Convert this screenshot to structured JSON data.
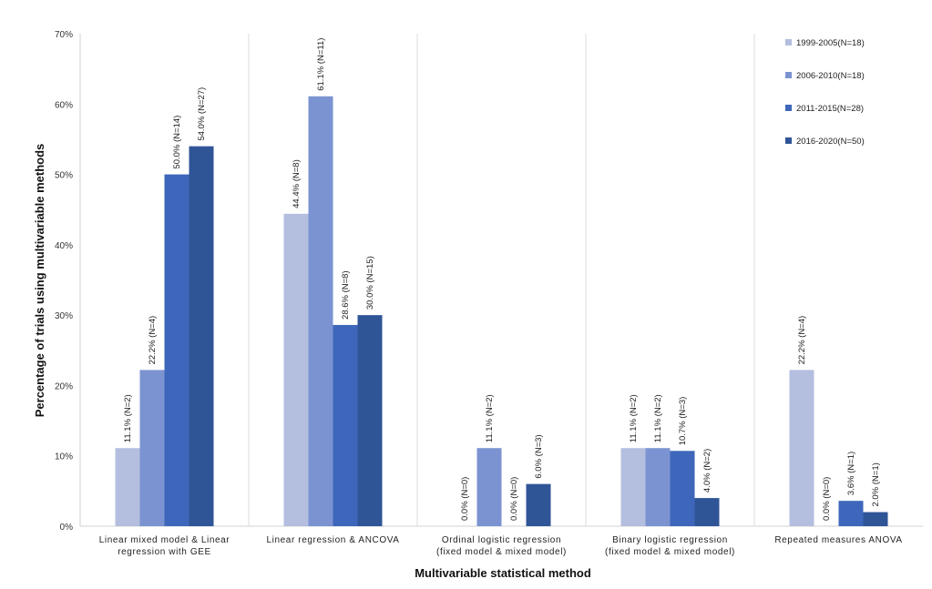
{
  "chart_data": {
    "type": "bar",
    "xlabel": "Multivariable statistical method",
    "ylabel": "Percentage of trials using multivariable methods",
    "ylim": [
      0,
      70
    ],
    "yticks": [
      "0%",
      "10%",
      "20%",
      "30%",
      "40%",
      "50%",
      "60%",
      "70%"
    ],
    "grid": "vertical separators between categories",
    "legend_position": "top-right",
    "categories": [
      [
        "Linear mixed model & Linear",
        "regression with GEE"
      ],
      [
        "Linear regression & ANCOVA"
      ],
      [
        "Ordinal logistic regression",
        "(fixed model & mixed model)"
      ],
      [
        "Binary logistic regression",
        "(fixed model & mixed model)"
      ],
      [
        "Repeated measures ANOVA"
      ]
    ],
    "series": [
      {
        "name": "1999-2005(N=18)",
        "color": "#b4bedf",
        "values": [
          11.1,
          44.4,
          0.0,
          11.1,
          22.2
        ],
        "labels": [
          "11.1% (N=2)",
          "44.4% (N=8)",
          "0.0% (N=0)",
          "11.1% (N=2)",
          "22.2% (N=4)"
        ]
      },
      {
        "name": "2006-2010(N=18)",
        "color": "#7b93d1",
        "values": [
          22.2,
          61.1,
          11.1,
          11.1,
          0.0
        ],
        "labels": [
          "22.2% (N=4)",
          "61.1% (N=11)",
          "11.1% (N=2)",
          "11.1% (N=2)",
          "0.0% (N=0)"
        ]
      },
      {
        "name": "2011-2015(N=28)",
        "color": "#3e67bb",
        "values": [
          50.0,
          28.6,
          0.0,
          10.7,
          3.6
        ],
        "labels": [
          "50.0% (N=14)",
          "28.6% (N=8)",
          "0.0% (N=0)",
          "10.7% (N=3)",
          "3.6% (N=1)"
        ]
      },
      {
        "name": "2016-2020(N=50)",
        "color": "#2f5597",
        "values": [
          54.0,
          30.0,
          6.0,
          4.0,
          2.0
        ],
        "labels": [
          "54.0% (N=27)",
          "30.0% (N=15)",
          "6.0% (N=3)",
          "4.0% (N=2)",
          "2.0% (N=1)"
        ]
      }
    ]
  }
}
